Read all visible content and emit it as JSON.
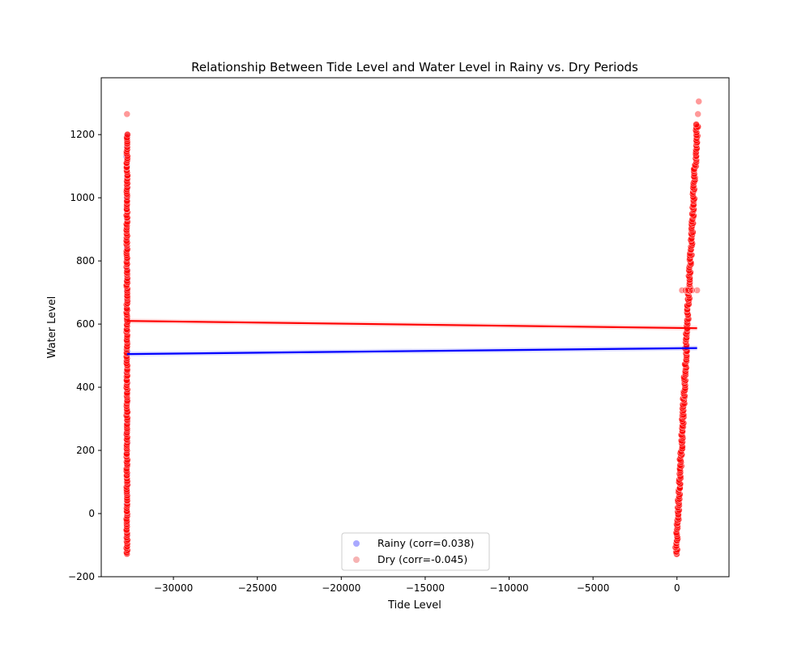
{
  "chart_data": {
    "type": "scatter",
    "title": "Relationship Between Tide Level and Water Level in Rainy vs. Dry Periods",
    "xlabel": "Tide Level",
    "ylabel": "Water Level",
    "xlim": [
      -34300,
      3100
    ],
    "ylim": [
      -200,
      1380
    ],
    "x_ticks": [
      -30000,
      -25000,
      -20000,
      -15000,
      -10000,
      -5000,
      0
    ],
    "x_tick_labels": [
      "−30000",
      "−25000",
      "−20000",
      "−15000",
      "−10000",
      "−5000",
      "0"
    ],
    "y_ticks": [
      -200,
      0,
      200,
      400,
      600,
      800,
      1000,
      1200
    ],
    "y_tick_labels": [
      "−200",
      "0",
      "200",
      "400",
      "600",
      "800",
      "1000",
      "1200"
    ],
    "grid": false,
    "legend_position": "bottom-center",
    "series": [
      {
        "name": "Rainy (corr=0.038)",
        "color": "#0000ff",
        "fill": "#9a9aff",
        "clusters": [
          {
            "x_start": -32767,
            "x_end": -32767,
            "y_start": -70,
            "y_end": 1195,
            "count": 40
          }
        ],
        "regression": {
          "x": [
            -32767,
            1200
          ],
          "y": [
            505,
            524
          ],
          "color": "#0000ff"
        }
      },
      {
        "name": "Dry (corr=-0.045)",
        "color": "#ff0000",
        "fill": "#f4a6a6",
        "clusters": [
          {
            "x_start": -32767,
            "x_end": -32767,
            "y_start": -130,
            "y_end": 1200,
            "count": 200
          },
          {
            "x_start": -50,
            "x_end": 1200,
            "y_start": -130,
            "y_end": 1230,
            "count": 230
          }
        ],
        "outliers": [
          {
            "x": -32767,
            "y": 1265
          },
          {
            "x": 1300,
            "y": 1305
          },
          {
            "x": 1250,
            "y": 1265
          },
          {
            "x": 1200,
            "y": 707
          },
          {
            "x": 300,
            "y": 707
          },
          {
            "x": 500,
            "y": 707
          },
          {
            "x": 650,
            "y": 707
          },
          {
            "x": 900,
            "y": 707
          }
        ],
        "regression": {
          "x": [
            -32767,
            1200
          ],
          "y": [
            610,
            587
          ],
          "color": "#ff0000"
        }
      }
    ]
  }
}
